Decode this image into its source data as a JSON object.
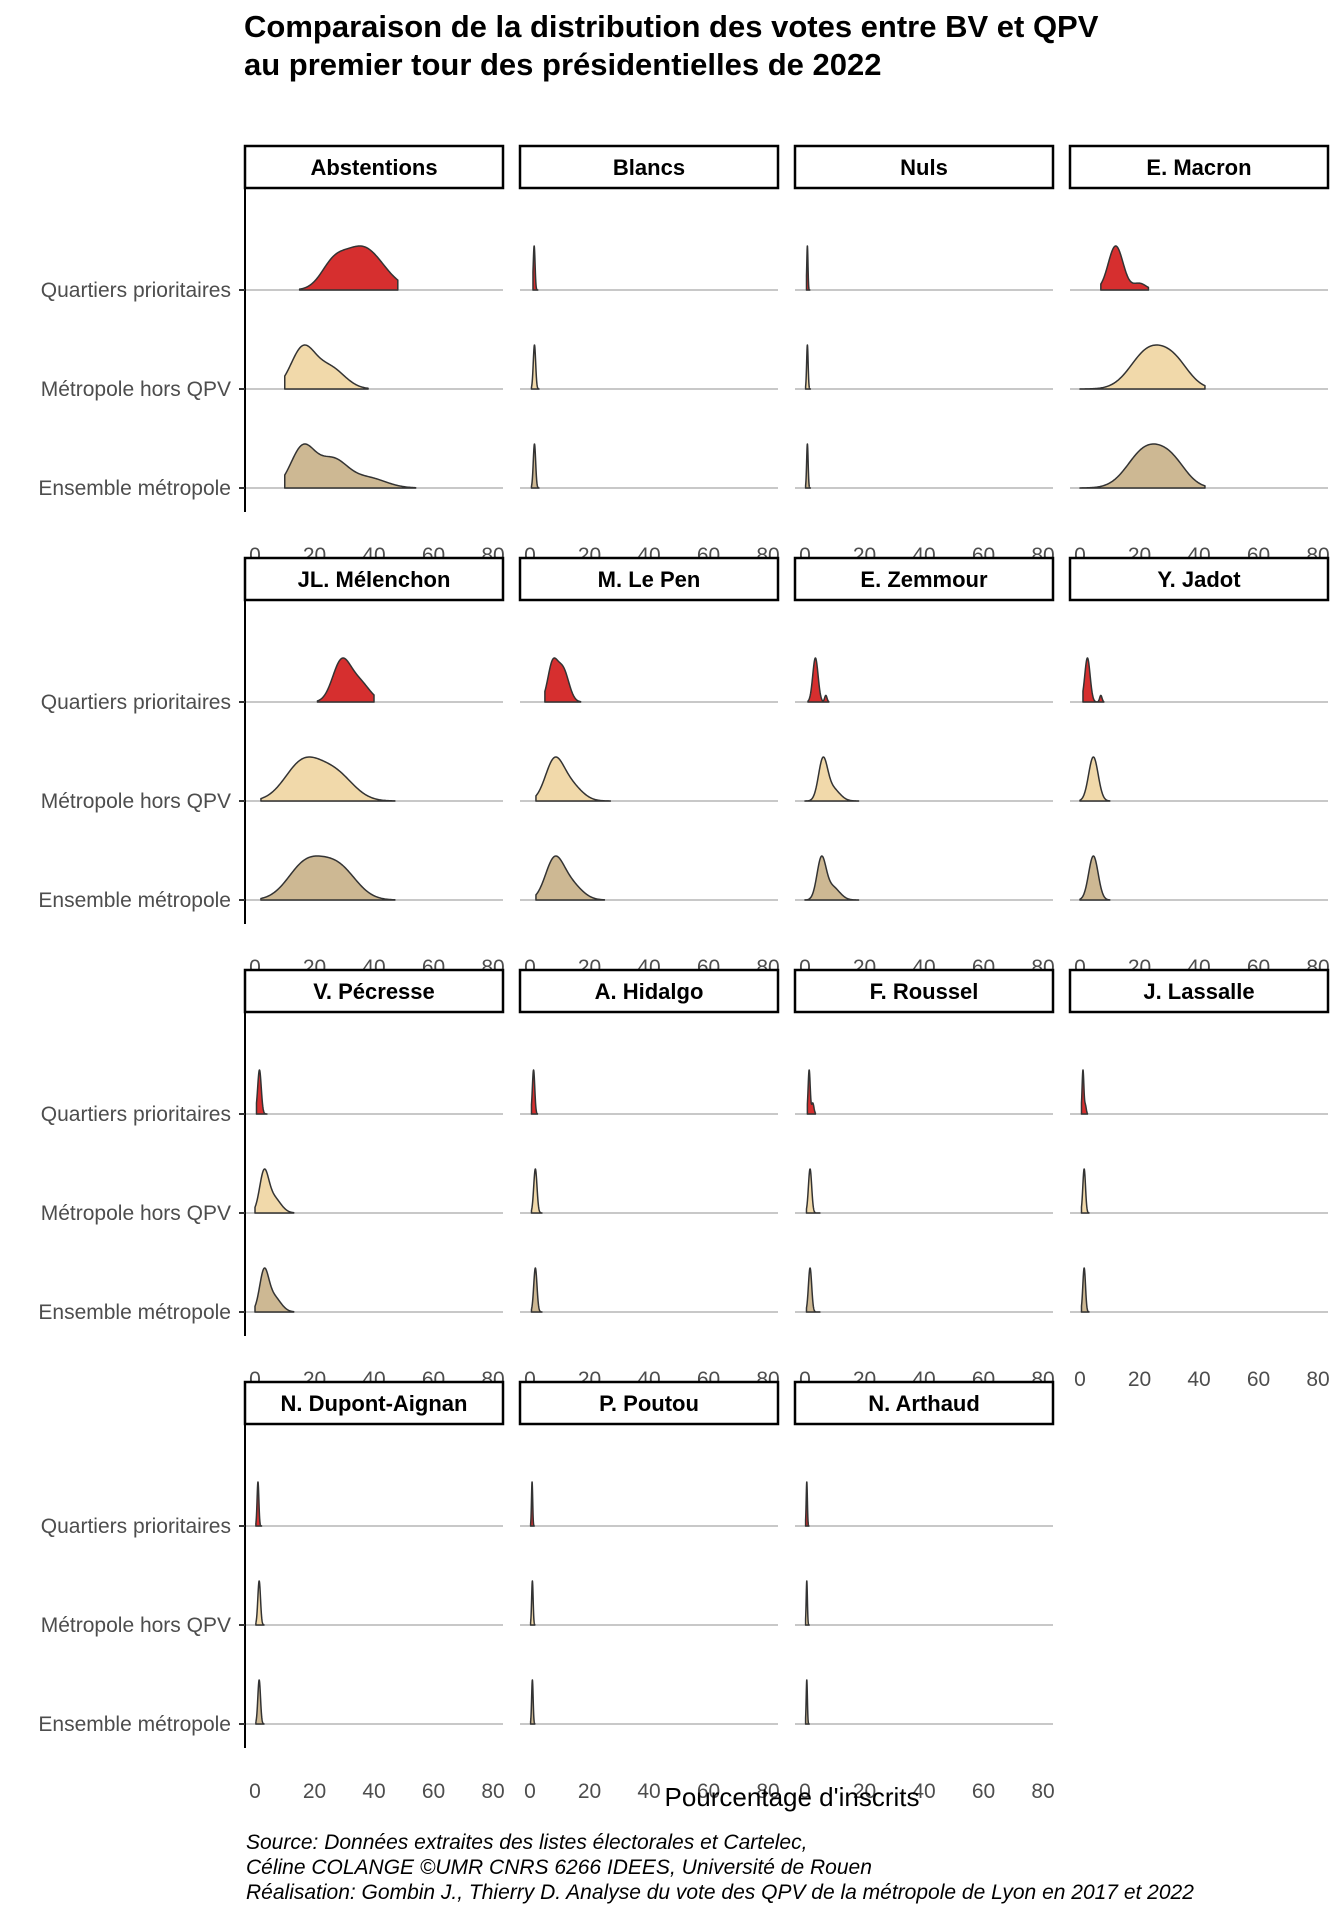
{
  "title": {
    "line1": "Comparaison de la distribution des votes entre BV et QPV",
    "line2": "au premier tour des présidentielles de 2022"
  },
  "caption": {
    "line1": "Source: Données extraites des listes électorales et Cartelec,",
    "line2": "Céline COLANGE ©UMR CNRS 6266 IDEES, Université de Rouen",
    "line3": "Réalisation: Gombin J., Thierry D. Analyse du vote des QPV de la métropole de Lyon en 2017 et 2022"
  },
  "colors": {
    "qpv": "#d62f2f",
    "hors_qpv": "#f1d9aa",
    "ensemble": "#cdb893",
    "strip_border": "#000000",
    "baseline": "#c8c8c8",
    "outline": "#333333"
  },
  "chart_data": {
    "type": "ridgeline",
    "xlabel": "Pourcentage d'inscrits",
    "xlim": [
      0,
      80
    ],
    "xticks": [
      0,
      20,
      40,
      60,
      80
    ],
    "groups": [
      "Quartiers prioritaires",
      "Métropole hors QPV",
      "Ensemble métropole"
    ],
    "panels": [
      {
        "name": "Abstentions",
        "series": [
          {
            "group": "Quartiers prioritaires",
            "range": [
              15,
              48
            ],
            "peaks": [
              [
                36,
                7,
                1
              ],
              [
                26,
                4,
                0.4
              ]
            ]
          },
          {
            "group": "Métropole hors QPV",
            "range": [
              10,
              38
            ],
            "peaks": [
              [
                16,
                4,
                1
              ],
              [
                25,
                5,
                0.55
              ]
            ]
          },
          {
            "group": "Ensemble métropole",
            "range": [
              10,
              54
            ],
            "peaks": [
              [
                16,
                4,
                1
              ],
              [
                26,
                5,
                0.7
              ],
              [
                38,
                6,
                0.25
              ]
            ]
          }
        ]
      },
      {
        "name": "Blancs",
        "series": [
          {
            "group": "Quartiers prioritaires",
            "range": [
              1,
              2.6
            ],
            "peaks": [
              [
                1.4,
                0.3,
                1
              ]
            ]
          },
          {
            "group": "Métropole hors QPV",
            "range": [
              0.5,
              3
            ],
            "peaks": [
              [
                1.5,
                0.4,
                1
              ]
            ]
          },
          {
            "group": "Ensemble métropole",
            "range": [
              0.5,
              3
            ],
            "peaks": [
              [
                1.5,
                0.4,
                1
              ]
            ]
          }
        ]
      },
      {
        "name": "Nuls",
        "series": [
          {
            "group": "Quartiers prioritaires",
            "range": [
              0.5,
              1.6
            ],
            "peaks": [
              [
                0.8,
                0.2,
                1
              ]
            ]
          },
          {
            "group": "Métropole hors QPV",
            "range": [
              0.2,
              1.8
            ],
            "peaks": [
              [
                0.8,
                0.25,
                1
              ]
            ]
          },
          {
            "group": "Ensemble métropole",
            "range": [
              0.2,
              1.8
            ],
            "peaks": [
              [
                0.8,
                0.25,
                1
              ]
            ]
          }
        ]
      },
      {
        "name": "E. Macron",
        "series": [
          {
            "group": "Quartiers prioritaires",
            "range": [
              7,
              23
            ],
            "peaks": [
              [
                12,
                2.5,
                1
              ],
              [
                20,
                2.2,
                0.15
              ]
            ]
          },
          {
            "group": "Métropole hors QPV",
            "range": [
              0,
              42
            ],
            "peaks": [
              [
                23,
                6,
                1
              ],
              [
                32,
                5,
                0.6
              ]
            ]
          },
          {
            "group": "Ensemble métropole",
            "range": [
              0,
              42
            ],
            "peaks": [
              [
                22,
                6,
                1
              ],
              [
                31,
                5,
                0.6
              ]
            ]
          }
        ]
      },
      {
        "name": "JL. Mélenchon",
        "series": [
          {
            "group": "Quartiers prioritaires",
            "range": [
              21,
              40
            ],
            "peaks": [
              [
                29,
                3,
                1
              ],
              [
                35,
                3.5,
                0.5
              ]
            ]
          },
          {
            "group": "Métropole hors QPV",
            "range": [
              2,
              47
            ],
            "peaks": [
              [
                16,
                6,
                1
              ],
              [
                27,
                6,
                0.7
              ]
            ]
          },
          {
            "group": "Ensemble métropole",
            "range": [
              2,
              47
            ],
            "peaks": [
              [
                17,
                6,
                1
              ],
              [
                28,
                6,
                0.9
              ]
            ]
          }
        ]
      },
      {
        "name": "M. Le Pen",
        "series": [
          {
            "group": "Quartiers prioritaires",
            "range": [
              5,
              17
            ],
            "peaks": [
              [
                7.5,
                1.6,
                1
              ],
              [
                11,
                2,
                0.95
              ]
            ]
          },
          {
            "group": "Métropole hors QPV",
            "range": [
              2,
              27
            ],
            "peaks": [
              [
                8,
                3,
                1
              ],
              [
                13,
                4,
                0.5
              ]
            ]
          },
          {
            "group": "Ensemble métropole",
            "range": [
              2,
              25
            ],
            "peaks": [
              [
                8,
                3,
                1
              ],
              [
                13,
                4,
                0.5
              ]
            ]
          }
        ]
      },
      {
        "name": "E. Zemmour",
        "series": [
          {
            "group": "Quartiers prioritaires",
            "range": [
              1,
              8
            ],
            "peaks": [
              [
                3.5,
                0.9,
                1
              ],
              [
                7,
                0.4,
                0.15
              ]
            ]
          },
          {
            "group": "Métropole hors QPV",
            "range": [
              0,
              18
            ],
            "peaks": [
              [
                6,
                1.5,
                1
              ],
              [
                9,
                2.5,
                0.35
              ]
            ]
          },
          {
            "group": "Ensemble métropole",
            "range": [
              0,
              18
            ],
            "peaks": [
              [
                5.5,
                1.5,
                1
              ],
              [
                9,
                2.5,
                0.35
              ]
            ]
          }
        ]
      },
      {
        "name": "Y. Jadot",
        "series": [
          {
            "group": "Quartiers prioritaires",
            "range": [
              1,
              8
            ],
            "peaks": [
              [
                2.5,
                0.9,
                1
              ],
              [
                7,
                0.4,
                0.15
              ]
            ]
          },
          {
            "group": "Métropole hors QPV",
            "range": [
              0,
              10
            ],
            "peaks": [
              [
                4.5,
                1.6,
                1
              ]
            ]
          },
          {
            "group": "Ensemble métropole",
            "range": [
              0,
              10
            ],
            "peaks": [
              [
                4.5,
                1.6,
                1
              ]
            ]
          }
        ]
      },
      {
        "name": "V. Pécresse",
        "series": [
          {
            "group": "Quartiers prioritaires",
            "range": [
              0.5,
              4
            ],
            "peaks": [
              [
                1.5,
                0.6,
                1
              ]
            ]
          },
          {
            "group": "Métropole hors QPV",
            "range": [
              0,
              13
            ],
            "peaks": [
              [
                3,
                1.5,
                1
              ],
              [
                6,
                2.5,
                0.45
              ]
            ]
          },
          {
            "group": "Ensemble métropole",
            "range": [
              0,
              13
            ],
            "peaks": [
              [
                3,
                1.5,
                1
              ],
              [
                6,
                2.5,
                0.45
              ]
            ]
          }
        ]
      },
      {
        "name": "A. Hidalgo",
        "series": [
          {
            "group": "Quartiers prioritaires",
            "range": [
              0.5,
              2.5
            ],
            "peaks": [
              [
                1.2,
                0.4,
                1
              ]
            ]
          },
          {
            "group": "Métropole hors QPV",
            "range": [
              0.5,
              4
            ],
            "peaks": [
              [
                1.8,
                0.55,
                1
              ]
            ]
          },
          {
            "group": "Ensemble métropole",
            "range": [
              0.5,
              4
            ],
            "peaks": [
              [
                1.8,
                0.55,
                1
              ]
            ]
          }
        ]
      },
      {
        "name": "F. Roussel",
        "series": [
          {
            "group": "Quartiers prioritaires",
            "range": [
              0.8,
              3.5
            ],
            "peaks": [
              [
                1.4,
                0.35,
                1
              ],
              [
                2.6,
                0.4,
                0.25
              ]
            ]
          },
          {
            "group": "Métropole hors QPV",
            "range": [
              0.5,
              5
            ],
            "peaks": [
              [
                1.7,
                0.55,
                1
              ]
            ]
          },
          {
            "group": "Ensemble métropole",
            "range": [
              0.5,
              5
            ],
            "peaks": [
              [
                1.7,
                0.55,
                1
              ]
            ]
          }
        ]
      },
      {
        "name": "J. Lassalle",
        "series": [
          {
            "group": "Quartiers prioritaires",
            "range": [
              0.5,
              2.5
            ],
            "peaks": [
              [
                1,
                0.3,
                1
              ],
              [
                1.8,
                0.3,
                0.2
              ]
            ]
          },
          {
            "group": "Métropole hors QPV",
            "range": [
              0.5,
              3
            ],
            "peaks": [
              [
                1.4,
                0.45,
                1
              ]
            ]
          },
          {
            "group": "Ensemble métropole",
            "range": [
              0.5,
              3
            ],
            "peaks": [
              [
                1.4,
                0.45,
                1
              ]
            ]
          }
        ]
      },
      {
        "name": "N. Dupont-Aignan",
        "series": [
          {
            "group": "Quartiers prioritaires",
            "range": [
              0.3,
              2.2
            ],
            "peaks": [
              [
                1,
                0.3,
                1
              ]
            ]
          },
          {
            "group": "Métropole hors QPV",
            "range": [
              0.3,
              3
            ],
            "peaks": [
              [
                1.4,
                0.45,
                1
              ]
            ]
          },
          {
            "group": "Ensemble métropole",
            "range": [
              0.3,
              3
            ],
            "peaks": [
              [
                1.4,
                0.45,
                1
              ]
            ]
          }
        ]
      },
      {
        "name": "P. Poutou",
        "series": [
          {
            "group": "Quartiers prioritaires",
            "range": [
              0.2,
              1.4
            ],
            "peaks": [
              [
                0.7,
                0.2,
                1
              ]
            ]
          },
          {
            "group": "Métropole hors QPV",
            "range": [
              0.2,
              1.6
            ],
            "peaks": [
              [
                0.8,
                0.25,
                1
              ]
            ]
          },
          {
            "group": "Ensemble métropole",
            "range": [
              0.2,
              1.6
            ],
            "peaks": [
              [
                0.8,
                0.25,
                1
              ]
            ]
          }
        ]
      },
      {
        "name": "N. Arthaud",
        "series": [
          {
            "group": "Quartiers prioritaires",
            "range": [
              0.2,
              1.3
            ],
            "peaks": [
              [
                0.6,
                0.2,
                1
              ]
            ]
          },
          {
            "group": "Métropole hors QPV",
            "range": [
              0.2,
              1.4
            ],
            "peaks": [
              [
                0.6,
                0.2,
                1
              ]
            ]
          },
          {
            "group": "Ensemble métropole",
            "range": [
              0.2,
              1.4
            ],
            "peaks": [
              [
                0.6,
                0.2,
                1
              ]
            ]
          }
        ]
      }
    ]
  }
}
